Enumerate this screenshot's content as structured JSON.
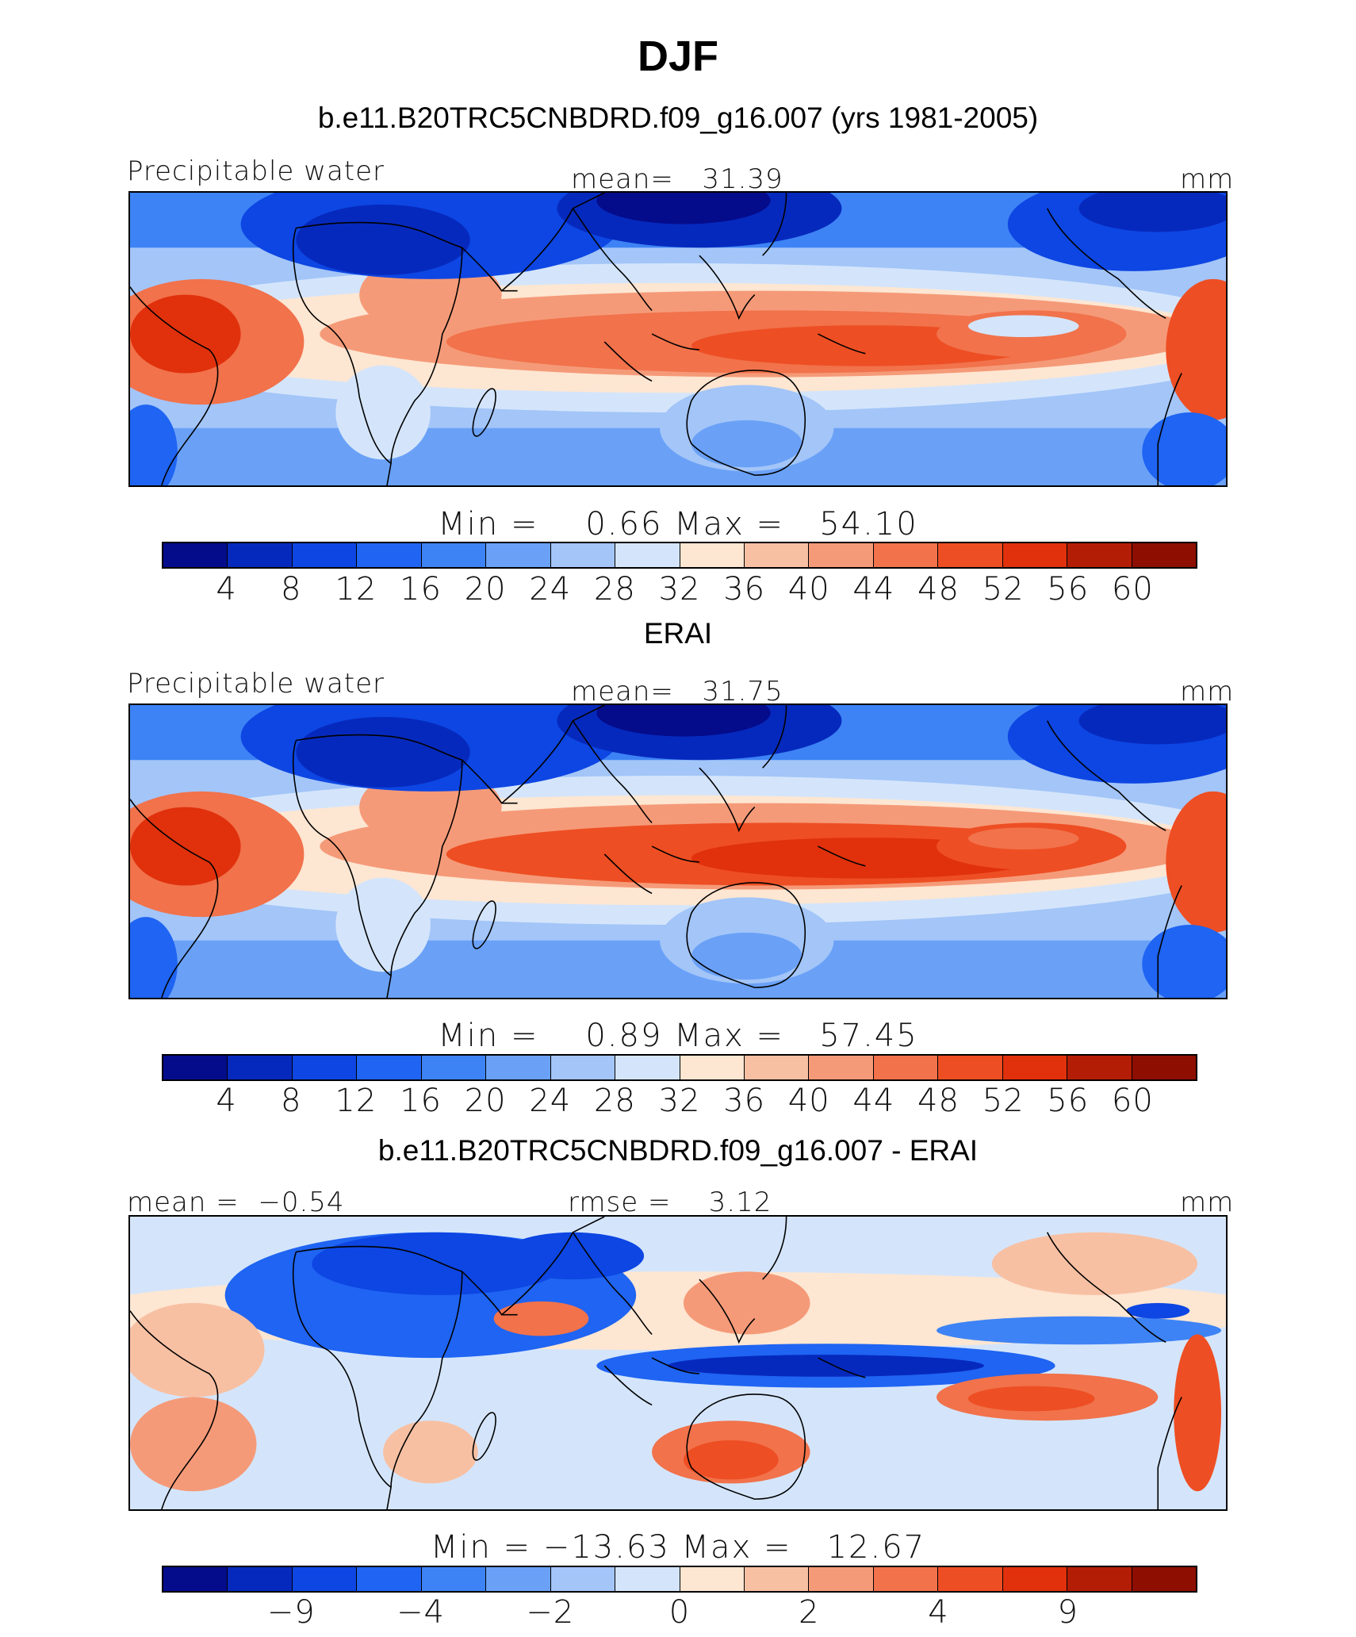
{
  "title": "DJF",
  "colors": [
    "#040c8c",
    "#0629bd",
    "#0d46e3",
    "#1f64f2",
    "#3d83f5",
    "#6aa1f7",
    "#a3c5f8",
    "#d4e5fb",
    "#fde6d2",
    "#f8c0a3",
    "#f59a78",
    "#f1724b",
    "#ee4e23",
    "#e0310c",
    "#b41d05",
    "#8e0e02"
  ],
  "panels": [
    {
      "title": "b.e11.B20TRC5CNBDRD.f09_g16.007 (yrs 1981-2005)",
      "left_label": "Precipitable water",
      "center_label": "mean=   31.39",
      "right_label": "mm",
      "stats": "Min =    0.66 Max =   54.10",
      "ticks": [
        "4",
        "8",
        "12",
        "16",
        "20",
        "24",
        "28",
        "32",
        "36",
        "40",
        "44",
        "48",
        "52",
        "56",
        "60"
      ],
      "field": "model"
    },
    {
      "title": "ERAI",
      "left_label": "Precipitable water",
      "center_label": "mean=   31.75",
      "right_label": "mm",
      "stats": "Min =    0.89 Max =   57.45",
      "ticks": [
        "4",
        "8",
        "12",
        "16",
        "20",
        "24",
        "28",
        "32",
        "36",
        "40",
        "44",
        "48",
        "52",
        "56",
        "60"
      ],
      "field": "obs"
    },
    {
      "title": "b.e11.B20TRC5CNBDRD.f09_g16.007 - ERAI",
      "left_label": "mean =  −0.54",
      "center_label": "rmse =    3.12",
      "right_label": "mm",
      "stats": "Min = −13.63 Max =   12.67",
      "ticks": [
        "",
        "−9",
        "",
        "−4",
        "",
        "−2",
        "",
        "0",
        "",
        "2",
        "",
        "4",
        "",
        "9",
        ""
      ],
      "field": "diff"
    }
  ]
}
